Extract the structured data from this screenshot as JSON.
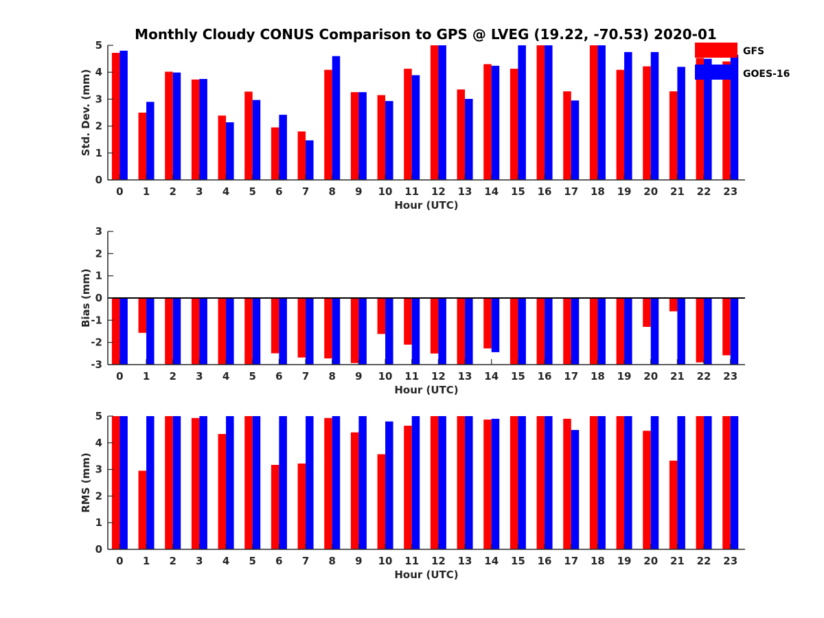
{
  "title": "Monthly Cloudy CONUS Comparison to GPS @ LVEG (19.22, -70.53) 2020-01",
  "legend": [
    {
      "name": "GFS",
      "color": "#ff0000"
    },
    {
      "name": "GOES-16",
      "color": "#0000ff"
    }
  ],
  "chart_data": [
    {
      "type": "bar",
      "xlabel": "Hour (UTC)",
      "ylabel": "Std. Dev. (mm)",
      "ylim": [
        0,
        5
      ],
      "yticks": [
        0,
        1,
        2,
        3,
        4,
        5
      ],
      "categories": [
        "0",
        "1",
        "2",
        "3",
        "4",
        "5",
        "6",
        "7",
        "8",
        "9",
        "10",
        "11",
        "12",
        "13",
        "14",
        "15",
        "16",
        "17",
        "18",
        "19",
        "20",
        "21",
        "22",
        "23"
      ],
      "legend_position": "top-right",
      "series": [
        {
          "name": "GFS",
          "color": "#ff0000",
          "values": [
            4.72,
            2.5,
            4.02,
            3.73,
            2.39,
            3.28,
            1.95,
            1.8,
            4.09,
            3.26,
            3.15,
            4.13,
            5,
            3.36,
            4.3,
            4.13,
            5,
            3.29,
            5,
            4.09,
            4.22,
            3.29,
            4.53,
            4.4
          ]
        },
        {
          "name": "GOES-16",
          "color": "#0000ff",
          "values": [
            4.8,
            2.9,
            3.99,
            3.75,
            2.14,
            2.97,
            2.42,
            1.47,
            4.6,
            3.26,
            2.93,
            3.89,
            5,
            3.01,
            4.24,
            5,
            5,
            2.95,
            5,
            4.75,
            4.75,
            4.2,
            4.5,
            4.65
          ]
        }
      ]
    },
    {
      "type": "bar",
      "xlabel": "Hour (UTC)",
      "ylabel": "Bias (mm)",
      "ylim": [
        -3,
        3
      ],
      "yticks": [
        -3,
        -2,
        -1,
        0,
        1,
        2,
        3
      ],
      "categories": [
        "0",
        "1",
        "2",
        "3",
        "4",
        "5",
        "6",
        "7",
        "8",
        "9",
        "10",
        "11",
        "12",
        "13",
        "14",
        "15",
        "16",
        "17",
        "18",
        "19",
        "20",
        "21",
        "22",
        "23"
      ],
      "series": [
        {
          "name": "GFS",
          "color": "#ff0000",
          "values": [
            -3,
            -1.57,
            -3,
            -3,
            -3,
            -3,
            -2.49,
            -2.68,
            -2.72,
            -2.93,
            -1.62,
            -2.1,
            -2.5,
            -3,
            -2.27,
            -3,
            -3,
            -3,
            -3,
            -3,
            -1.3,
            -0.6,
            -2.9,
            -2.58
          ]
        },
        {
          "name": "GOES-16",
          "color": "#0000ff",
          "values": [
            -3,
            -3,
            -3,
            -3,
            -3,
            -3,
            -3,
            -3,
            -3,
            -3,
            -3,
            -3,
            -3,
            -3,
            -2.44,
            -3,
            -3,
            -3,
            -3,
            -3,
            -3,
            -3,
            -3,
            -3
          ]
        }
      ]
    },
    {
      "type": "bar",
      "xlabel": "Hour (UTC)",
      "ylabel": "RMS (mm)",
      "ylim": [
        0,
        5
      ],
      "yticks": [
        0,
        1,
        2,
        3,
        4,
        5
      ],
      "categories": [
        "0",
        "1",
        "2",
        "3",
        "4",
        "5",
        "6",
        "7",
        "8",
        "9",
        "10",
        "11",
        "12",
        "13",
        "14",
        "15",
        "16",
        "17",
        "18",
        "19",
        "20",
        "21",
        "22",
        "23"
      ],
      "series": [
        {
          "name": "GFS",
          "color": "#ff0000",
          "values": [
            5,
            2.95,
            5,
            4.93,
            4.33,
            5,
            3.17,
            3.22,
            4.93,
            4.39,
            3.57,
            4.64,
            5,
            5,
            4.87,
            5,
            5,
            4.9,
            5,
            5,
            4.45,
            3.33,
            5,
            5
          ]
        },
        {
          "name": "GOES-16",
          "color": "#0000ff",
          "values": [
            5,
            5,
            5,
            5,
            5,
            5,
            5,
            5,
            5,
            5,
            4.8,
            5,
            5,
            5,
            4.9,
            5,
            5,
            4.48,
            5,
            5,
            5,
            5,
            5,
            5
          ]
        }
      ]
    }
  ]
}
